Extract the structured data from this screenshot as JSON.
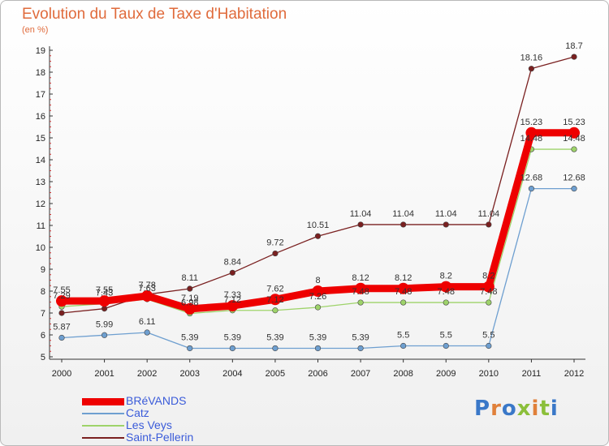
{
  "chart_data": {
    "type": "line",
    "title": "Evolution du Taux de Taxe d'Habitation",
    "subtitle": "(en %)",
    "x": [
      "2000",
      "2001",
      "2002",
      "2003",
      "2004",
      "2005",
      "2006",
      "2007",
      "2008",
      "2009",
      "2010",
      "2011",
      "2012"
    ],
    "yticks": [
      5,
      6,
      7,
      8,
      9,
      10,
      11,
      12,
      13,
      14,
      15,
      16,
      17,
      18,
      19
    ],
    "ylim": [
      5,
      19
    ],
    "grid": false,
    "legend": "bottom-left",
    "series": [
      {
        "name": "BRéVANDS",
        "color": "#ee0000",
        "values": [
          7.55,
          7.55,
          7.78,
          7.19,
          7.33,
          7.62,
          8,
          8.12,
          8.12,
          8.2,
          8.2,
          15.23,
          15.23
        ],
        "labels": [
          "7.55",
          "7.55",
          "7.78",
          "7.19",
          "7.33",
          "7.62",
          "8",
          "8.12",
          "8.12",
          "8.2",
          "8.2",
          "15.23",
          "15.23"
        ]
      },
      {
        "name": "Catz",
        "color": "#6e9fd0",
        "values": [
          5.87,
          5.99,
          6.11,
          5.39,
          5.39,
          5.39,
          5.39,
          5.39,
          5.5,
          5.5,
          5.5,
          12.68,
          12.68
        ],
        "labels": [
          "5.87",
          "5.99",
          "6.11",
          "5.39",
          "5.39",
          "5.39",
          "5.39",
          "5.39",
          "5.5",
          "5.5",
          "5.5",
          "12.68",
          "12.68"
        ]
      },
      {
        "name": "Les Veys",
        "color": "#9ed36a",
        "values": [
          7.29,
          7.43,
          7.63,
          6.98,
          7.12,
          7.12,
          7.26,
          7.48,
          7.48,
          7.48,
          7.48,
          14.48,
          14.48
        ],
        "labels": [
          "7.29",
          "7.43",
          "7.63",
          "6.98",
          "7.12",
          "7.12",
          "7.26",
          "7.48",
          "7.48",
          "7.48",
          "7.48",
          "14.48",
          "14.48"
        ]
      },
      {
        "name": "Saint-Pellerin",
        "color": "#7a2020",
        "values": [
          7,
          7.2,
          7.85,
          8.11,
          8.84,
          9.72,
          10.51,
          11.04,
          11.04,
          11.04,
          11.04,
          18.16,
          18.7
        ],
        "labels": [
          "",
          "",
          "",
          "8.11",
          "8.84",
          "9.72",
          "10.51",
          "11.04",
          "11.04",
          "11.04",
          "11.04",
          "18.16",
          "18.7"
        ]
      }
    ]
  },
  "logo": {
    "text": [
      "P",
      "r",
      "o",
      "x",
      "i",
      "t",
      "i"
    ]
  }
}
